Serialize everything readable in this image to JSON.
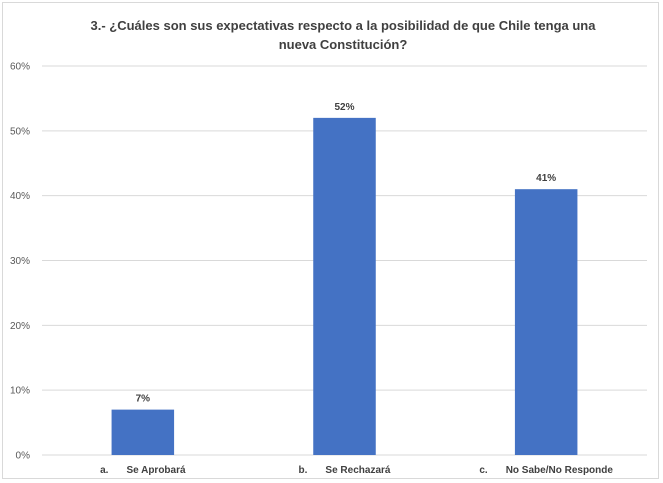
{
  "chart_data": {
    "type": "bar",
    "title_line1": "3.- ¿Cuáles son sus expectativas respecto a la posibilidad de que Chile tenga  una",
    "title_line2": "nueva Constitución?",
    "xlabel": "",
    "ylabel": "",
    "ylim": [
      0,
      60
    ],
    "yticks": [
      "0%",
      "10%",
      "20%",
      "30%",
      "40%",
      "50%",
      "60%"
    ],
    "grid": true,
    "legend": "none",
    "categories": [
      {
        "prefix": "a.",
        "label": "Se Aprobará"
      },
      {
        "prefix": "b.",
        "label": "Se Rechazará"
      },
      {
        "prefix": "c.",
        "label": "No Sabe/No Responde"
      }
    ],
    "values": [
      7,
      52,
      41
    ],
    "data_labels": [
      "7%",
      "52%",
      "41%"
    ],
    "bar_color": "#4472c4",
    "grid_color": "#d9d9d9"
  }
}
